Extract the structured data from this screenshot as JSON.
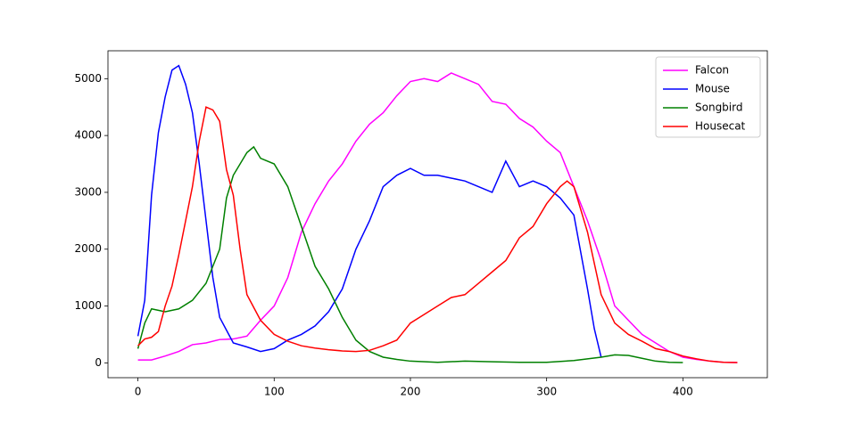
{
  "chart_data": {
    "type": "line",
    "xlim": [
      -22,
      462
    ],
    "ylim": [
      -261,
      5491
    ],
    "xticks": [
      0,
      100,
      200,
      300,
      400
    ],
    "yticks": [
      0,
      1000,
      2000,
      3000,
      4000,
      5000
    ],
    "grid": false,
    "legend": "upper right",
    "series": [
      {
        "name": "Falcon",
        "color": "#ff00ff",
        "x": [
          0,
          10,
          20,
          30,
          40,
          50,
          60,
          70,
          80,
          90,
          100,
          110,
          120,
          130,
          140,
          150,
          160,
          170,
          180,
          190,
          200,
          210,
          220,
          230,
          240,
          250,
          260,
          270,
          280,
          290,
          300,
          310,
          320,
          330,
          340,
          350,
          360,
          370,
          380,
          390,
          400,
          410,
          420,
          430,
          440
        ],
        "values": [
          50,
          50,
          120,
          200,
          320,
          350,
          410,
          420,
          470,
          750,
          1000,
          1500,
          2300,
          2800,
          3200,
          3500,
          3900,
          4200,
          4400,
          4700,
          4950,
          5000,
          4950,
          5100,
          5000,
          4900,
          4600,
          4550,
          4300,
          4150,
          3900,
          3700,
          3100,
          2500,
          1800,
          1000,
          750,
          500,
          350,
          200,
          100,
          60,
          30,
          10,
          5
        ]
      },
      {
        "name": "Mouse",
        "color": "#0000ff",
        "x": [
          0,
          5,
          10,
          15,
          20,
          25,
          30,
          35,
          40,
          45,
          50,
          55,
          60,
          70,
          80,
          90,
          100,
          110,
          120,
          130,
          140,
          150,
          160,
          170,
          180,
          190,
          200,
          210,
          220,
          230,
          240,
          250,
          260,
          270,
          280,
          290,
          300,
          310,
          320,
          330,
          335,
          340
        ],
        "values": [
          470,
          1100,
          2950,
          4050,
          4680,
          5150,
          5230,
          4900,
          4400,
          3500,
          2500,
          1500,
          800,
          350,
          280,
          200,
          250,
          400,
          500,
          650,
          900,
          1300,
          2000,
          2500,
          3100,
          3300,
          3420,
          3300,
          3300,
          3250,
          3200,
          3100,
          3000,
          3550,
          3100,
          3200,
          3100,
          2900,
          2600,
          1300,
          600,
          100
        ]
      },
      {
        "name": "Songbird",
        "color": "#008000",
        "x": [
          0,
          5,
          10,
          20,
          30,
          40,
          50,
          60,
          65,
          70,
          80,
          85,
          90,
          100,
          110,
          120,
          130,
          140,
          150,
          160,
          170,
          180,
          190,
          200,
          220,
          240,
          260,
          280,
          300,
          320,
          340,
          350,
          360,
          370,
          380,
          390,
          400
        ],
        "values": [
          250,
          700,
          950,
          900,
          950,
          1100,
          1400,
          2000,
          2900,
          3300,
          3700,
          3800,
          3600,
          3500,
          3100,
          2400,
          1700,
          1300,
          800,
          400,
          200,
          100,
          60,
          30,
          10,
          30,
          20,
          10,
          10,
          40,
          100,
          140,
          130,
          80,
          30,
          10,
          5
        ]
      },
      {
        "name": "Housecat",
        "color": "#ff0000",
        "x": [
          0,
          5,
          10,
          15,
          20,
          25,
          30,
          35,
          40,
          45,
          50,
          55,
          60,
          65,
          70,
          75,
          80,
          90,
          100,
          110,
          120,
          130,
          140,
          150,
          160,
          170,
          180,
          190,
          200,
          210,
          220,
          230,
          240,
          250,
          260,
          270,
          280,
          290,
          300,
          310,
          315,
          320,
          330,
          340,
          350,
          360,
          370,
          380,
          390,
          400,
          410,
          420,
          430,
          440
        ],
        "values": [
          300,
          420,
          450,
          550,
          1000,
          1350,
          1900,
          2500,
          3100,
          3900,
          4500,
          4450,
          4250,
          3400,
          2950,
          2000,
          1200,
          750,
          500,
          380,
          300,
          260,
          230,
          210,
          200,
          220,
          300,
          400,
          700,
          850,
          1000,
          1150,
          1200,
          1400,
          1600,
          1800,
          2200,
          2400,
          2800,
          3100,
          3200,
          3100,
          2300,
          1200,
          700,
          500,
          380,
          250,
          200,
          120,
          70,
          30,
          10,
          5
        ]
      }
    ]
  }
}
